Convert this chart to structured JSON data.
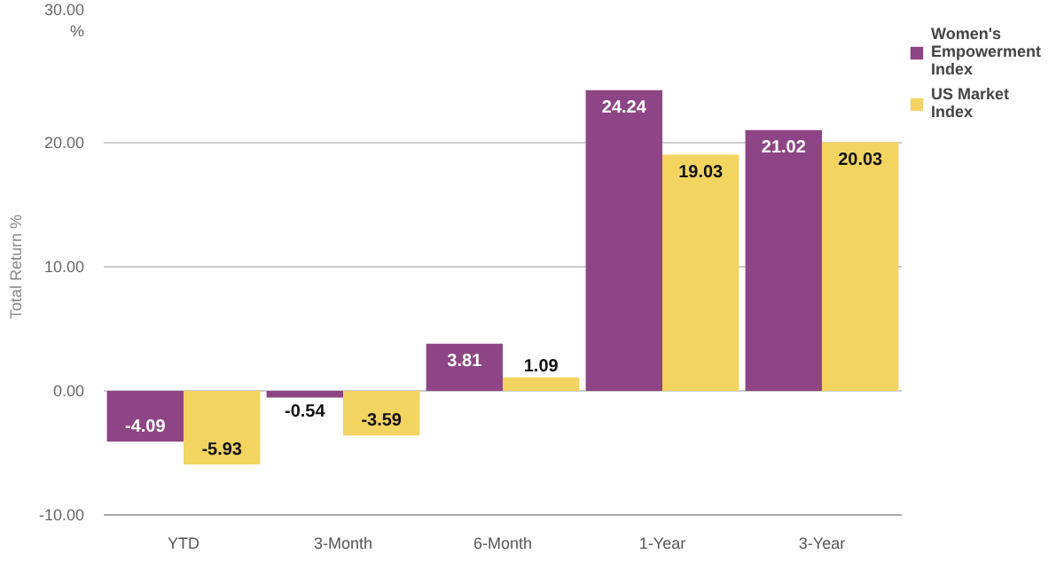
{
  "chart_data": {
    "type": "bar",
    "ylabel": "Total Return %",
    "categories": [
      "YTD",
      "3-Month",
      "6-Month",
      "1-Year",
      "3-Year"
    ],
    "series": [
      {
        "name": "Women's Empowerment Index",
        "color": "#8e4585",
        "values": [
          -4.09,
          -0.54,
          3.81,
          24.24,
          21.02
        ]
      },
      {
        "name": "US Market Index",
        "color": "#f3d461",
        "values": [
          -5.93,
          -3.59,
          1.09,
          19.03,
          20.03
        ]
      }
    ],
    "ylim": [
      -10,
      30
    ],
    "yticks": [
      {
        "value": -10,
        "label": "-10.00"
      },
      {
        "value": 0,
        "label": "0.00"
      },
      {
        "value": 10,
        "label": "10.00"
      },
      {
        "value": 20,
        "label": "20.00"
      },
      {
        "value": 30,
        "label": "30.00\n%"
      }
    ],
    "grid": "y",
    "legend": "top right",
    "data_labels": true
  }
}
